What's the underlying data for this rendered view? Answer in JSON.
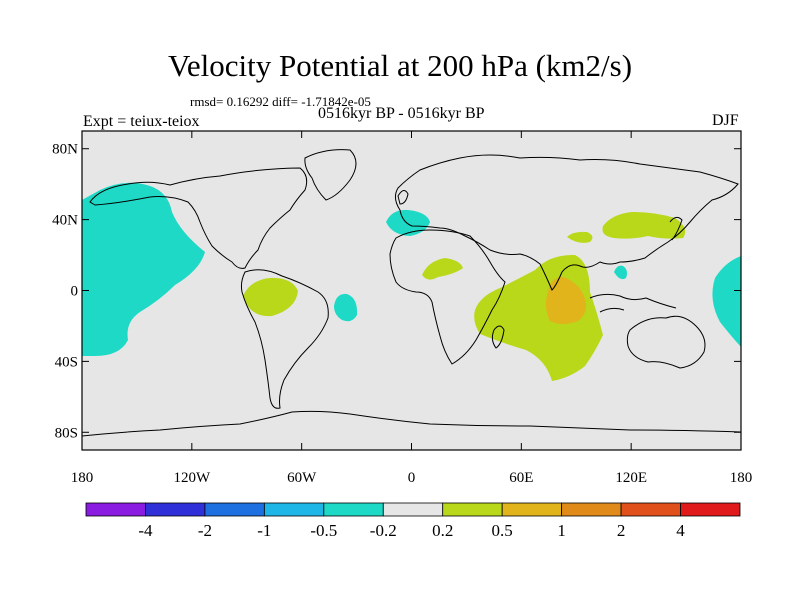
{
  "title": "Velocity Potential at 200 hPa (km2/s)",
  "stats_line": "rmsd= 0.16292 diff= -1.71842e-05",
  "experiment_label": "Expt = teiux-teiox",
  "period_label": "0516kyr BP - 0516kyr BP",
  "season_label": "DJF",
  "lat_ticks": [
    "80N",
    "40N",
    "0",
    "40S",
    "80S"
  ],
  "lon_ticks": [
    "180",
    "120W",
    "60W",
    "0",
    "60E",
    "120E",
    "180"
  ],
  "colorbar": {
    "labels": [
      "-4",
      "-2",
      "-1",
      "-0.5",
      "-0.2",
      "0.2",
      "0.5",
      "1",
      "2",
      "4"
    ],
    "colors": [
      "#8a1be0",
      "#3030d8",
      "#1e6fe0",
      "#1eb6e6",
      "#1ed9c6",
      "#e6e6e6",
      "#b9d81a",
      "#e0b41a",
      "#e08a1a",
      "#e0501a",
      "#e01a1a"
    ]
  },
  "background_color": "#e6e6e6",
  "anomalies": [
    {
      "name": "central-pacific-negative",
      "level": "-0.5 to -0.2"
    },
    {
      "name": "mediterranean-negative",
      "level": "-0.5 to -0.2"
    },
    {
      "name": "south-atlantic-negative",
      "level": "-0.5 to -0.2"
    },
    {
      "name": "south-china-sea-negative",
      "level": "-0.5 to -0.2"
    },
    {
      "name": "west-pacific-negative",
      "level": "-0.5 to -0.2"
    },
    {
      "name": "amazon-positive",
      "level": "0.2 to 0.5"
    },
    {
      "name": "sahara-positive",
      "level": "0.2 to 0.5"
    },
    {
      "name": "indian-ocean-positive",
      "level": "0.2 to 0.5"
    },
    {
      "name": "central-indian-ocean-positive",
      "level": "0.5 to 1"
    },
    {
      "name": "east-asia-positive",
      "level": "0.2 to 0.5"
    },
    {
      "name": "tibet-positive",
      "level": "0.2 to 0.5"
    }
  ]
}
